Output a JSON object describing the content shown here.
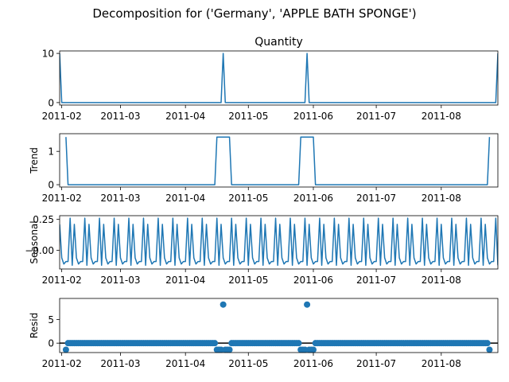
{
  "figure": {
    "suptitle": "Decomposition for ('Germany', 'APPLE BATH SPONGE')"
  },
  "chart_data": [
    {
      "type": "line",
      "panel": "observed",
      "title": "Quantity",
      "ylabel": "",
      "ylim": [
        -0.5,
        10.5
      ],
      "yticks": [
        0,
        10
      ],
      "xlim": [
        "2011-01-31",
        "2011-08-28"
      ],
      "xtick_labels": [
        "2011-02",
        "2011-03",
        "2011-04",
        "2011-05",
        "2011-06",
        "2011-07",
        "2011-08"
      ],
      "series": [
        {
          "points": [
            [
              "2011-01-31",
              10
            ],
            [
              "2011-02-01",
              0
            ],
            [
              "2011-04-18",
              0
            ],
            [
              "2011-04-19",
              10
            ],
            [
              "2011-04-20",
              0
            ],
            [
              "2011-05-28",
              0
            ],
            [
              "2011-05-29",
              10
            ],
            [
              "2011-05-30",
              0
            ],
            [
              "2011-08-27",
              0
            ],
            [
              "2011-08-28",
              10
            ]
          ]
        }
      ],
      "color": "#1f77b4",
      "grid": false
    },
    {
      "type": "line",
      "panel": "trend",
      "title": "",
      "ylabel": "Trend",
      "ylim": [
        -0.07,
        1.53
      ],
      "yticks": [
        0,
        1
      ],
      "xlim": [
        "2011-01-31",
        "2011-08-28"
      ],
      "xtick_labels": [
        "2011-02",
        "2011-03",
        "2011-04",
        "2011-05",
        "2011-06",
        "2011-07",
        "2011-08"
      ],
      "series": [
        {
          "points": [
            [
              "2011-02-03",
              1.43
            ],
            [
              "2011-02-04",
              0
            ],
            [
              "2011-04-15",
              0
            ],
            [
              "2011-04-16",
              1.43
            ],
            [
              "2011-04-22",
              1.43
            ],
            [
              "2011-04-23",
              0
            ],
            [
              "2011-05-25",
              0
            ],
            [
              "2011-05-26",
              1.43
            ],
            [
              "2011-06-01",
              1.43
            ],
            [
              "2011-06-02",
              0
            ],
            [
              "2011-08-23",
              0
            ],
            [
              "2011-08-24",
              1.43
            ]
          ]
        }
      ],
      "color": "#1f77b4",
      "grid": false
    },
    {
      "type": "line",
      "panel": "seasonal",
      "title": "",
      "ylabel": "Seasonal",
      "ylim": [
        -0.15,
        0.28
      ],
      "yticks": [
        -0.0,
        0.25
      ],
      "ytick_labels": [
        "−0.00",
        "0.25"
      ],
      "xlim": [
        "2011-01-31",
        "2011-08-28"
      ],
      "xtick_labels": [
        "2011-02",
        "2011-03",
        "2011-04",
        "2011-05",
        "2011-06",
        "2011-07",
        "2011-08"
      ],
      "weekly_pattern": [
        0.21,
        -0.06,
        -0.11,
        -0.09,
        -0.09,
        0.26,
        -0.12
      ],
      "series_start": "2011-01-31",
      "series_end": "2011-08-28",
      "color": "#1f77b4",
      "grid": false
    },
    {
      "type": "scatter",
      "panel": "resid",
      "title": "",
      "ylabel": "Resid",
      "ylim": [
        -2.0,
        9.5
      ],
      "yticks": [
        0,
        5
      ],
      "xlim": [
        "2011-01-31",
        "2011-08-28"
      ],
      "xtick_labels": [
        "2011-02",
        "2011-03",
        "2011-04",
        "2011-05",
        "2011-06",
        "2011-07",
        "2011-08"
      ],
      "baseline_value": 0,
      "resid_default": 0,
      "resid_points": [
        [
          "2011-02-03",
          -1.4
        ],
        [
          "2011-04-16",
          -1.4
        ],
        [
          "2011-04-17",
          -1.4
        ],
        [
          "2011-04-18",
          -1.4
        ],
        [
          "2011-04-19",
          8.2
        ],
        [
          "2011-04-20",
          -1.4
        ],
        [
          "2011-04-21",
          -1.4
        ],
        [
          "2011-04-22",
          -1.4
        ],
        [
          "2011-05-26",
          -1.4
        ],
        [
          "2011-05-27",
          -1.4
        ],
        [
          "2011-05-28",
          -1.4
        ],
        [
          "2011-05-29",
          8.2
        ],
        [
          "2011-05-30",
          -1.4
        ],
        [
          "2011-05-31",
          -1.4
        ],
        [
          "2011-06-01",
          -1.4
        ],
        [
          "2011-08-24",
          -1.4
        ]
      ],
      "resid_start": "2011-02-03",
      "resid_end": "2011-08-24",
      "color": "#1f77b4",
      "grid": false
    }
  ]
}
